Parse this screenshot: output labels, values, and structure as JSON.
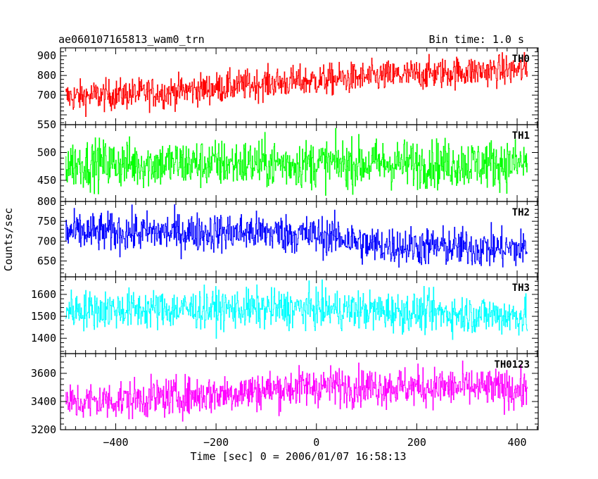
{
  "header": {
    "title": "ae060107165813_wam0_trn",
    "bin_time": "Bin time: 1.0 s"
  },
  "chart_data": {
    "type": "line",
    "xlabel": "Time [sec] 0 = 2006/01/07 16:58:13",
    "ylabel": "Counts/sec",
    "xlim": [
      -510,
      442
    ],
    "x_ticks": [
      -400,
      -200,
      0,
      200,
      400
    ],
    "x_tick_labels": [
      "−400",
      "−200",
      "0",
      "200",
      "400"
    ],
    "time_range": [
      -500,
      420
    ],
    "bin_time": 1.0,
    "panels": [
      {
        "name": "TH0",
        "color": "#ff0000",
        "ylim": [
          550,
          940
        ],
        "y_ticks": [
          550,
          700,
          800,
          900
        ],
        "trend": [
          [
            -500,
            690
          ],
          [
            -300,
            715
          ],
          [
            -100,
            760
          ],
          [
            100,
            790
          ],
          [
            300,
            820
          ],
          [
            420,
            830
          ]
        ],
        "noise": 40
      },
      {
        "name": "TH1",
        "color": "#00ff00",
        "ylim": [
          412,
          550
        ],
        "y_ticks": [
          450,
          500
        ],
        "trend": [
          [
            -500,
            480
          ],
          [
            420,
            480
          ]
        ],
        "noise": 22
      },
      {
        "name": "TH2",
        "color": "#0000ff",
        "ylim": [
          610,
          800
        ],
        "y_ticks": [
          650,
          700,
          750,
          800
        ],
        "trend": [
          [
            -500,
            722
          ],
          [
            -100,
            722
          ],
          [
            50,
            710
          ],
          [
            100,
            690
          ],
          [
            420,
            680
          ]
        ],
        "noise": 25
      },
      {
        "name": "TH3",
        "color": "#00ffff",
        "ylim": [
          1330,
          1680
        ],
        "y_ticks": [
          1400,
          1500,
          1600
        ],
        "trend": [
          [
            -500,
            1530
          ],
          [
            0,
            1535
          ],
          [
            420,
            1500
          ]
        ],
        "noise": 45
      },
      {
        "name": "TH0123",
        "color": "#ff00ff",
        "ylim": [
          3200,
          3740
        ],
        "y_ticks": [
          3200,
          3400,
          3600
        ],
        "trend": [
          [
            -500,
            3390
          ],
          [
            -250,
            3440
          ],
          [
            0,
            3510
          ],
          [
            300,
            3500
          ],
          [
            420,
            3480
          ]
        ],
        "noise": 70
      }
    ]
  }
}
